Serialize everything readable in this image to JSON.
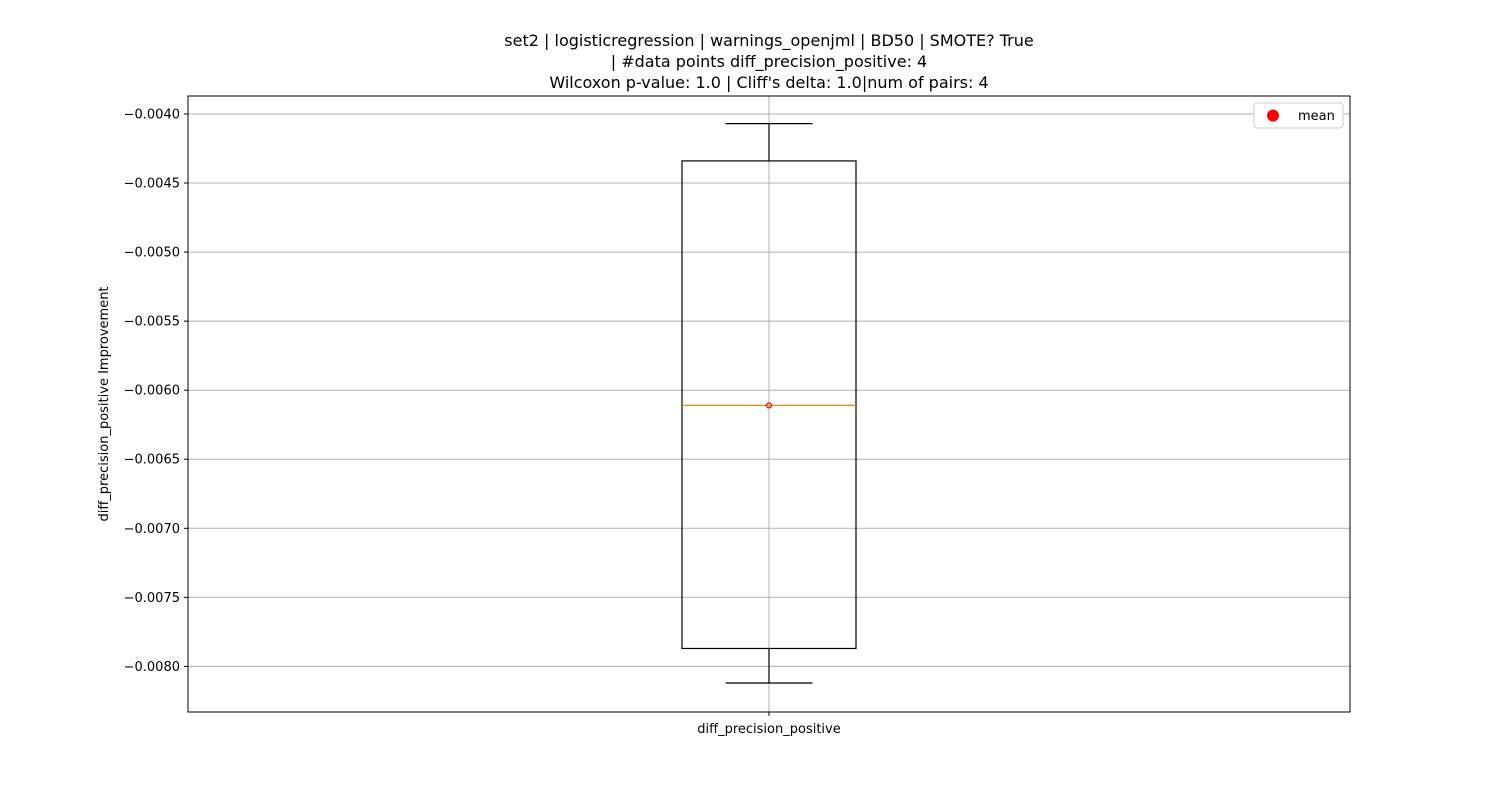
{
  "chart_data": {
    "type": "box",
    "title_lines": [
      "set2 | logisticregression | warnings_openjml | BD50 | SMOTE? True",
      "| #data points diff_precision_positive: 4",
      "Wilcoxon p-value: 1.0 | Cliff's delta: 1.0|num of pairs: 4"
    ],
    "xlabel": "",
    "ylabel": "diff_precision_positive Improvement",
    "categories": [
      "diff_precision_positive"
    ],
    "ylim": [
      -0.00833,
      -0.00387
    ],
    "yticks": [
      -0.004,
      -0.0045,
      -0.005,
      -0.0055,
      -0.006,
      -0.0065,
      -0.007,
      -0.0075,
      -0.008
    ],
    "ytick_labels": [
      "−0.0040",
      "−0.0045",
      "−0.0050",
      "−0.0055",
      "−0.0060",
      "−0.0065",
      "−0.0070",
      "−0.0075",
      "−0.0080"
    ],
    "box": {
      "whisker_high": -0.00407,
      "q3": -0.00434,
      "median": -0.00611,
      "q1": -0.00787,
      "whisker_low": -0.00812,
      "mean": -0.00611
    },
    "legend": {
      "position": "top-right",
      "entries": [
        "mean"
      ]
    },
    "grid": true,
    "colors": {
      "box": "#000000",
      "median": "#ff7f0e",
      "mean": "#ff0000",
      "grid": "#b0b0b0"
    }
  }
}
